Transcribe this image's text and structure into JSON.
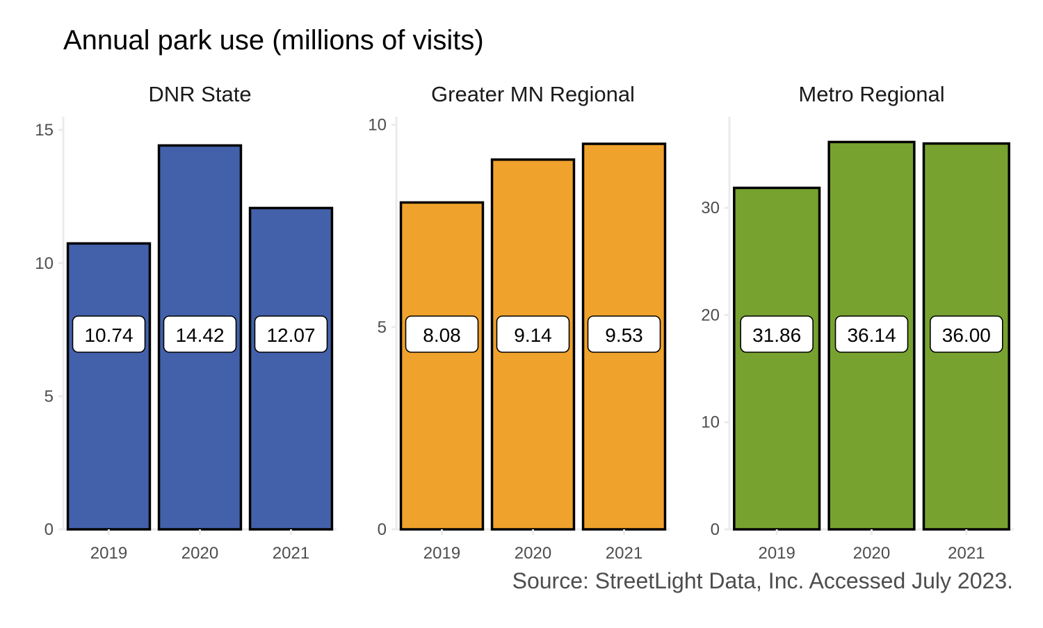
{
  "title": "Annual park use (millions of visits)",
  "caption": "Source: StreetLight Data, Inc. Accessed July 2023.",
  "chart_data": {
    "type": "bar",
    "categories": [
      "2019",
      "2020",
      "2021"
    ],
    "panels": [
      {
        "name": "DNR State",
        "values": [
          10.74,
          14.42,
          12.07
        ],
        "labels": [
          "10.74",
          "14.42",
          "12.07"
        ],
        "color": "#4361AA",
        "ylim": [
          0,
          15.5
        ],
        "yticks": [
          0,
          5,
          10,
          15
        ]
      },
      {
        "name": "Greater MN Regional",
        "values": [
          8.08,
          9.14,
          9.53
        ],
        "labels": [
          "8.08",
          "9.14",
          "9.53"
        ],
        "color": "#EFA22C",
        "ylim": [
          0,
          10.2
        ],
        "yticks": [
          0,
          5,
          10
        ]
      },
      {
        "name": "Metro Regional",
        "values": [
          31.86,
          36.14,
          36.0
        ],
        "labels": [
          "31.86",
          "36.14",
          "36.00"
        ],
        "color": "#78A22F",
        "ylim": [
          0,
          38.5
        ],
        "yticks": [
          0,
          10,
          20,
          30
        ]
      }
    ],
    "grid": false,
    "legend": "none"
  }
}
